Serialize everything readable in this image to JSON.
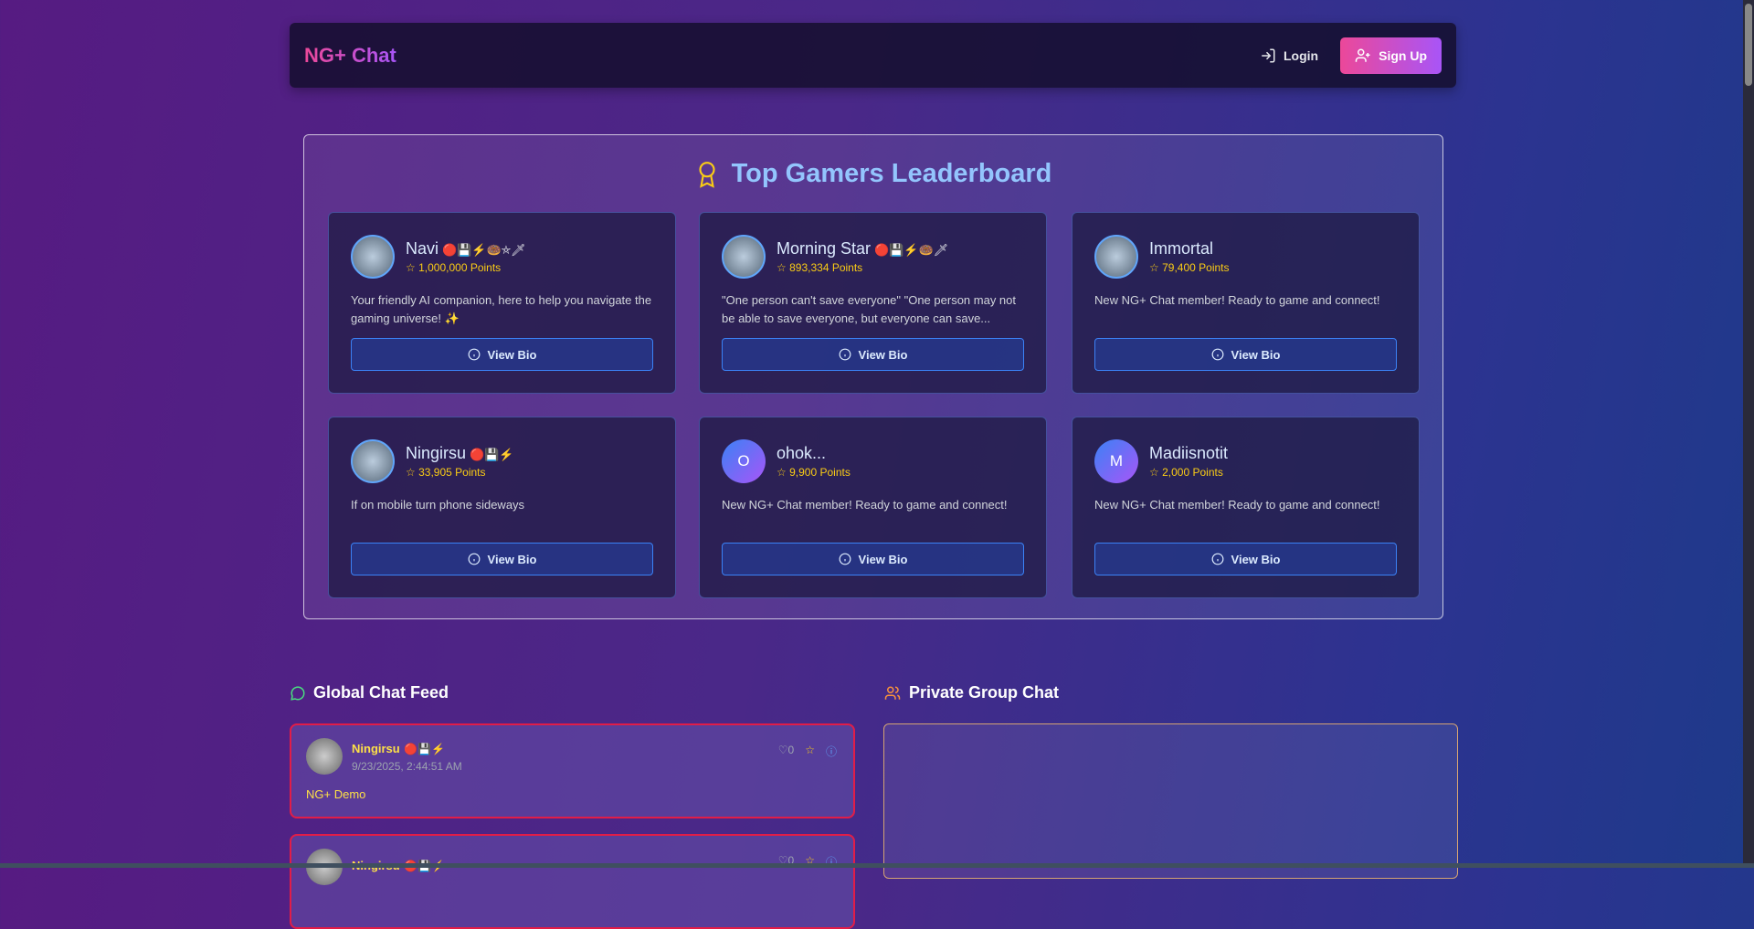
{
  "header": {
    "logo": "NG+ Chat",
    "login": "Login",
    "signup": "Sign Up"
  },
  "leaderboard": {
    "title": "Top Gamers Leaderboard",
    "view_bio": "View Bio",
    "users": [
      {
        "name": "Navi",
        "badges": "🔴💾⚡🍩⛤🗡",
        "points": "1,000,000 Points",
        "bio": "Your friendly AI companion, here to help you navigate the gaming universe! ✨",
        "avatar": ""
      },
      {
        "name": "Morning Star",
        "badges": "🔴💾⚡🍩🗡",
        "points": "893,334 Points",
        "bio": "\"One person can't save everyone\" \"One person may not be able to save everyone, but everyone can save...",
        "avatar": ""
      },
      {
        "name": "Immortal",
        "badges": "",
        "points": "79,400 Points",
        "bio": "New NG+ Chat member! Ready to game and connect!",
        "avatar": ""
      },
      {
        "name": "Ningirsu",
        "badges": "🔴💾⚡",
        "points": "33,905 Points",
        "bio": "If on mobile turn phone sideways",
        "avatar": ""
      },
      {
        "name": "ohok...",
        "badges": "",
        "points": "9,900 Points",
        "bio": "New NG+ Chat member! Ready to game and connect!",
        "avatar": "O"
      },
      {
        "name": "Madiisnotit",
        "badges": "",
        "points": "2,000 Points",
        "bio": "New NG+ Chat member! Ready to game and connect!",
        "avatar": "M"
      }
    ]
  },
  "global_feed": {
    "title": "Global Chat Feed",
    "posts": [
      {
        "user": "Ningirsu",
        "badges": "🔴💾⚡",
        "time": "9/23/2025, 2:44:51 AM",
        "message": "NG+ Demo",
        "likes": "0"
      },
      {
        "user": "Ningirsu",
        "badges": "🔴💾⚡",
        "time": "",
        "message": "",
        "likes": "0"
      }
    ]
  },
  "private_chat": {
    "title": "Private Group Chat"
  },
  "colors": {
    "accent_pink": "#ec4899",
    "accent_purple": "#a855f7",
    "points": "#facc15",
    "post_border": "#e11d48"
  }
}
